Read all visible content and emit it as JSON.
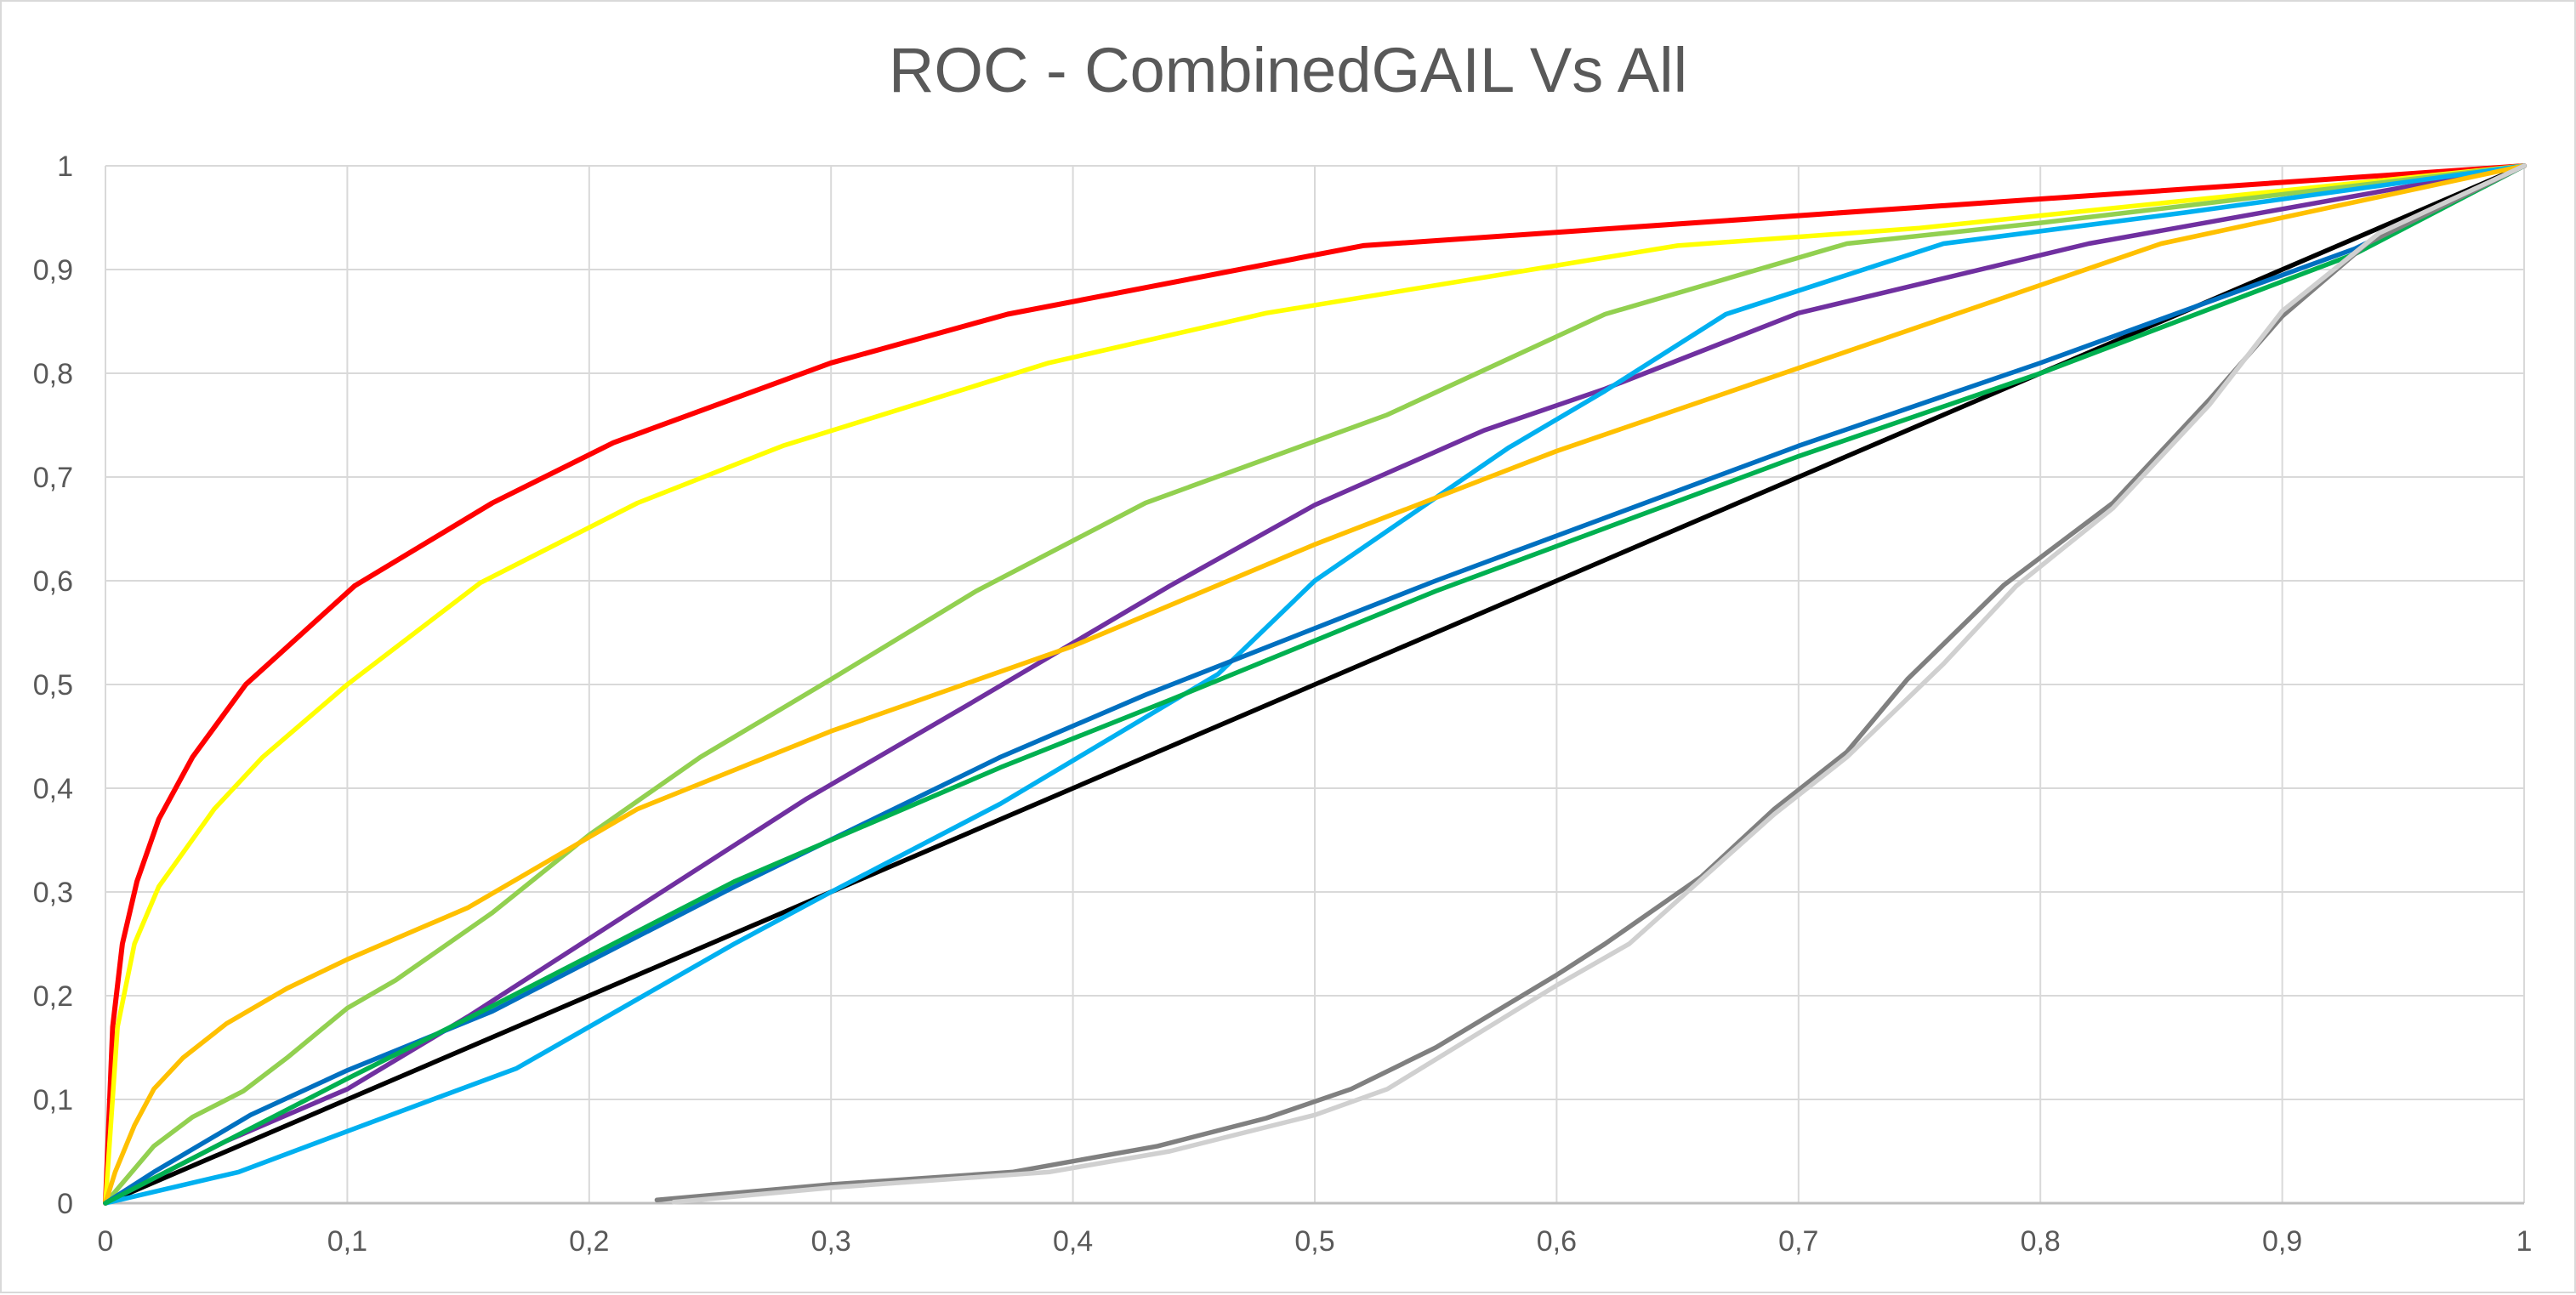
{
  "chart_data": {
    "type": "line",
    "title": "ROC - CombinedGAIL Vs All",
    "xlabel": "",
    "ylabel": "",
    "xlim": [
      0,
      1
    ],
    "ylim": [
      0,
      1
    ],
    "grid": true,
    "legend": "none",
    "x_tick_labels": [
      "0",
      "0,1",
      "0,2",
      "0,3",
      "0,4",
      "0,5",
      "0,6",
      "0,7",
      "0,8",
      "0,9",
      "1"
    ],
    "y_tick_labels": [
      "0",
      "0,1",
      "0,2",
      "0,3",
      "0,4",
      "0,5",
      "0,6",
      "0,7",
      "0,8",
      "0,9",
      "1"
    ],
    "series": [
      {
        "color": "#000000",
        "x": [
          0,
          1
        ],
        "y": [
          0,
          1
        ]
      },
      {
        "color": "#ff0000",
        "x": [
          0,
          0.003,
          0.007,
          0.013,
          0.022,
          0.036,
          0.058,
          0.103,
          0.16,
          0.21,
          0.3,
          0.373,
          0.52,
          0.7,
          1
        ],
        "y": [
          0,
          0.17,
          0.25,
          0.31,
          0.37,
          0.43,
          0.5,
          0.595,
          0.675,
          0.733,
          0.81,
          0.857,
          0.923,
          0.952,
          1
        ]
      },
      {
        "color": "#ffff00",
        "x": [
          0,
          0.005,
          0.012,
          0.022,
          0.045,
          0.065,
          0.1,
          0.155,
          0.22,
          0.28,
          0.39,
          0.48,
          0.65,
          0.75,
          1
        ],
        "y": [
          0,
          0.17,
          0.25,
          0.305,
          0.38,
          0.43,
          0.5,
          0.598,
          0.675,
          0.73,
          0.81,
          0.858,
          0.923,
          0.94,
          1
        ]
      },
      {
        "color": "#92d050",
        "x": [
          0,
          0.02,
          0.036,
          0.057,
          0.075,
          0.1,
          0.12,
          0.16,
          0.2,
          0.246,
          0.3,
          0.36,
          0.43,
          0.53,
          0.62,
          0.72,
          0.8,
          1
        ],
        "y": [
          0,
          0.055,
          0.083,
          0.108,
          0.14,
          0.188,
          0.215,
          0.28,
          0.355,
          0.43,
          0.505,
          0.59,
          0.675,
          0.76,
          0.857,
          0.925,
          0.945,
          1
        ]
      },
      {
        "color": "#7030a0",
        "x": [
          0,
          0.05,
          0.1,
          0.15,
          0.19,
          0.24,
          0.29,
          0.36,
          0.44,
          0.5,
          0.57,
          0.62,
          0.7,
          0.82,
          1
        ],
        "y": [
          0,
          0.06,
          0.11,
          0.18,
          0.24,
          0.315,
          0.39,
          0.485,
          0.595,
          0.673,
          0.745,
          0.785,
          0.858,
          0.925,
          1
        ]
      },
      {
        "color": "#00b0f0",
        "x": [
          0,
          0.055,
          0.11,
          0.17,
          0.26,
          0.3,
          0.37,
          0.46,
          0.5,
          0.58,
          0.62,
          0.67,
          0.76,
          0.86,
          1
        ],
        "y": [
          0,
          0.03,
          0.078,
          0.13,
          0.25,
          0.3,
          0.385,
          0.51,
          0.6,
          0.728,
          0.783,
          0.857,
          0.925,
          0.955,
          1
        ]
      },
      {
        "color": "#ffc000",
        "x": [
          0,
          0.004,
          0.012,
          0.02,
          0.032,
          0.05,
          0.075,
          0.1,
          0.15,
          0.22,
          0.3,
          0.4,
          0.5,
          0.6,
          0.7,
          0.85,
          1
        ],
        "y": [
          0,
          0.03,
          0.075,
          0.11,
          0.14,
          0.173,
          0.207,
          0.235,
          0.285,
          0.38,
          0.455,
          0.537,
          0.635,
          0.725,
          0.805,
          0.925,
          1
        ]
      },
      {
        "color": "#0070c0",
        "x": [
          0,
          0.02,
          0.06,
          0.1,
          0.16,
          0.26,
          0.37,
          0.43,
          0.55,
          0.7,
          0.8,
          0.93,
          1
        ],
        "y": [
          0,
          0.03,
          0.085,
          0.128,
          0.185,
          0.305,
          0.43,
          0.49,
          0.6,
          0.73,
          0.81,
          0.92,
          1
        ]
      },
      {
        "color": "#00b050",
        "x": [
          0,
          0.05,
          0.1,
          0.16,
          0.26,
          0.37,
          0.44,
          0.55,
          0.7,
          0.8,
          0.93,
          1
        ],
        "y": [
          0,
          0.06,
          0.12,
          0.19,
          0.31,
          0.42,
          0.485,
          0.59,
          0.72,
          0.8,
          0.915,
          1
        ]
      },
      {
        "color": "#808080",
        "x": [
          0.228,
          0.3,
          0.375,
          0.435,
          0.48,
          0.515,
          0.55,
          0.6,
          0.62,
          0.66,
          0.69,
          0.72,
          0.745,
          0.785,
          0.83,
          0.87,
          0.9,
          0.935,
          1
        ],
        "y": [
          0.003,
          0.018,
          0.03,
          0.055,
          0.082,
          0.11,
          0.15,
          0.22,
          0.25,
          0.315,
          0.38,
          0.435,
          0.505,
          0.596,
          0.675,
          0.775,
          0.855,
          0.925,
          1
        ]
      },
      {
        "color": "#d0d0d0",
        "x": [
          0.235,
          0.3,
          0.39,
          0.44,
          0.5,
          0.53,
          0.6,
          0.63,
          0.69,
          0.72,
          0.76,
          0.79,
          0.83,
          0.87,
          0.9,
          0.94,
          1
        ],
        "y": [
          0.001,
          0.015,
          0.03,
          0.05,
          0.085,
          0.11,
          0.21,
          0.25,
          0.375,
          0.43,
          0.52,
          0.595,
          0.67,
          0.77,
          0.86,
          0.935,
          1
        ]
      }
    ]
  }
}
